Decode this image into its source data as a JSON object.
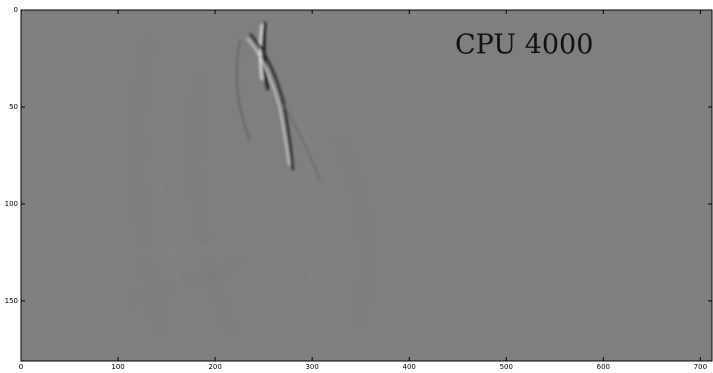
{
  "chart_data": {
    "type": "image",
    "annotation": "CPU 4000",
    "colormap": "gray",
    "xlim": [
      0,
      712
    ],
    "xticks": [
      0,
      100,
      200,
      300,
      400,
      500,
      600,
      700
    ],
    "ylim": [
      181,
      0
    ],
    "yticks": [
      0,
      50,
      100,
      150
    ]
  }
}
